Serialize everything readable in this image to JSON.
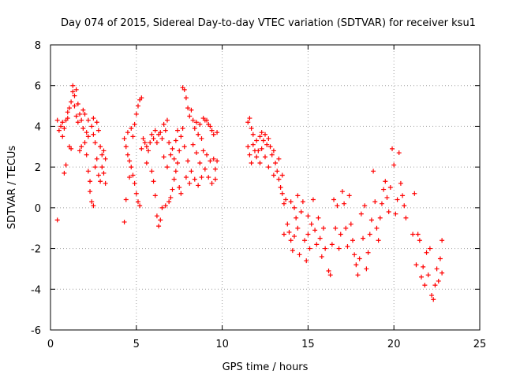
{
  "chart_data": {
    "type": "scatter",
    "title": "Day 074 of 2015, Sidereal Day-to-day VTEC variation (SDTVAR) for receiver ksu1",
    "xlabel": "GPS time / hours",
    "ylabel": "SDTVAR / TECUs",
    "xlim": [
      0,
      25
    ],
    "ylim": [
      -6,
      8
    ],
    "xticks": [
      0,
      5,
      10,
      15,
      20,
      25
    ],
    "yticks": [
      -6,
      -4,
      -2,
      0,
      2,
      4,
      6,
      8
    ],
    "grid": true,
    "marker": "+",
    "color": "#ff0000",
    "series": [
      {
        "name": "ksu1",
        "points": [
          [
            0.4,
            -0.6
          ],
          [
            0.4,
            4.3
          ],
          [
            0.5,
            3.8
          ],
          [
            0.6,
            4.0
          ],
          [
            0.7,
            4.2
          ],
          [
            0.7,
            3.5
          ],
          [
            0.8,
            3.9
          ],
          [
            0.8,
            1.7
          ],
          [
            0.9,
            2.1
          ],
          [
            0.9,
            4.3
          ],
          [
            1.0,
            4.4
          ],
          [
            1.0,
            4.7
          ],
          [
            1.1,
            4.9
          ],
          [
            1.1,
            3.0
          ],
          [
            1.2,
            5.2
          ],
          [
            1.2,
            2.9
          ],
          [
            1.3,
            5.7
          ],
          [
            1.3,
            6.0
          ],
          [
            1.4,
            5.5
          ],
          [
            1.4,
            5.0
          ],
          [
            1.5,
            5.8
          ],
          [
            1.5,
            4.5
          ],
          [
            1.6,
            5.1
          ],
          [
            1.6,
            4.2
          ],
          [
            1.7,
            4.6
          ],
          [
            1.7,
            2.8
          ],
          [
            1.8,
            4.3
          ],
          [
            1.8,
            3.0
          ],
          [
            1.9,
            3.9
          ],
          [
            1.9,
            4.8
          ],
          [
            2.0,
            4.6
          ],
          [
            2.0,
            3.2
          ],
          [
            2.1,
            2.6
          ],
          [
            2.1,
            3.7
          ],
          [
            2.2,
            1.8
          ],
          [
            2.2,
            3.5
          ],
          [
            2.2,
            4.3
          ],
          [
            2.3,
            1.3
          ],
          [
            2.3,
            0.8
          ],
          [
            2.4,
            0.3
          ],
          [
            2.4,
            4.0
          ],
          [
            2.5,
            0.1
          ],
          [
            2.5,
            3.6
          ],
          [
            2.5,
            4.4
          ],
          [
            2.6,
            3.2
          ],
          [
            2.6,
            2.0
          ],
          [
            2.7,
            2.4
          ],
          [
            2.7,
            4.2
          ],
          [
            2.8,
            3.8
          ],
          [
            2.8,
            1.6
          ],
          [
            2.9,
            3.0
          ],
          [
            2.9,
            1.3
          ],
          [
            3.0,
            2.6
          ],
          [
            3.0,
            2.0
          ],
          [
            3.1,
            1.7
          ],
          [
            3.1,
            2.8
          ],
          [
            3.2,
            1.2
          ],
          [
            3.2,
            2.4
          ],
          [
            4.3,
            -0.7
          ],
          [
            4.3,
            3.4
          ],
          [
            4.4,
            3.0
          ],
          [
            4.4,
            0.4
          ],
          [
            4.5,
            2.6
          ],
          [
            4.5,
            3.7
          ],
          [
            4.6,
            2.3
          ],
          [
            4.6,
            1.5
          ],
          [
            4.7,
            3.9
          ],
          [
            4.7,
            2.0
          ],
          [
            4.8,
            3.5
          ],
          [
            4.8,
            1.6
          ],
          [
            4.9,
            4.1
          ],
          [
            4.9,
            1.2
          ],
          [
            5.0,
            4.6
          ],
          [
            5.0,
            0.7
          ],
          [
            5.1,
            5.0
          ],
          [
            5.1,
            0.3
          ],
          [
            5.2,
            5.3
          ],
          [
            5.2,
            0.1
          ],
          [
            5.3,
            5.4
          ],
          [
            5.3,
            2.9
          ],
          [
            5.4,
            3.4
          ],
          [
            5.5,
            3.2
          ],
          [
            5.6,
            3.0
          ],
          [
            5.6,
            2.2
          ],
          [
            5.7,
            2.8
          ],
          [
            5.8,
            3.2
          ],
          [
            5.9,
            3.6
          ],
          [
            5.9,
            1.8
          ],
          [
            6.0,
            3.4
          ],
          [
            6.0,
            1.3
          ],
          [
            6.1,
            3.8
          ],
          [
            6.1,
            0.6
          ],
          [
            6.2,
            3.2
          ],
          [
            6.2,
            -0.4
          ],
          [
            6.3,
            3.6
          ],
          [
            6.3,
            -0.9
          ],
          [
            6.4,
            3.7
          ],
          [
            6.4,
            -0.6
          ],
          [
            6.5,
            3.4
          ],
          [
            6.5,
            0.0
          ],
          [
            6.6,
            4.1
          ],
          [
            6.6,
            2.5
          ],
          [
            6.7,
            3.8
          ],
          [
            6.7,
            0.1
          ],
          [
            6.8,
            4.3
          ],
          [
            6.8,
            2.0
          ],
          [
            6.9,
            3.2
          ],
          [
            6.9,
            0.3
          ],
          [
            7.0,
            2.6
          ],
          [
            7.0,
            0.5
          ],
          [
            7.1,
            2.9
          ],
          [
            7.1,
            0.9
          ],
          [
            7.2,
            2.4
          ],
          [
            7.2,
            1.4
          ],
          [
            7.3,
            3.3
          ],
          [
            7.3,
            1.8
          ],
          [
            7.4,
            3.8
          ],
          [
            7.4,
            2.2
          ],
          [
            7.5,
            2.8
          ],
          [
            7.5,
            1.0
          ],
          [
            7.6,
            3.5
          ],
          [
            7.6,
            0.7
          ],
          [
            7.7,
            3.9
          ],
          [
            7.7,
            5.9
          ],
          [
            7.8,
            5.8
          ],
          [
            7.8,
            3.0
          ],
          [
            7.9,
            5.4
          ],
          [
            7.9,
            1.5
          ],
          [
            8.0,
            4.9
          ],
          [
            8.0,
            2.3
          ],
          [
            8.1,
            4.5
          ],
          [
            8.1,
            1.2
          ],
          [
            8.2,
            4.8
          ],
          [
            8.2,
            1.8
          ],
          [
            8.3,
            4.3
          ],
          [
            8.3,
            3.1
          ],
          [
            8.4,
            3.9
          ],
          [
            8.4,
            1.4
          ],
          [
            8.5,
            4.2
          ],
          [
            8.5,
            2.7
          ],
          [
            8.6,
            3.6
          ],
          [
            8.6,
            1.1
          ],
          [
            8.7,
            4.1
          ],
          [
            8.7,
            2.2
          ],
          [
            8.8,
            3.4
          ],
          [
            8.8,
            1.5
          ],
          [
            8.9,
            4.4
          ],
          [
            8.9,
            2.8
          ],
          [
            9.0,
            4.3
          ],
          [
            9.0,
            1.9
          ],
          [
            9.1,
            4.3
          ],
          [
            9.1,
            2.6
          ],
          [
            9.2,
            4.1
          ],
          [
            9.2,
            1.5
          ],
          [
            9.3,
            4.0
          ],
          [
            9.3,
            2.3
          ],
          [
            9.4,
            3.8
          ],
          [
            9.4,
            1.2
          ],
          [
            9.5,
            3.6
          ],
          [
            9.5,
            2.4
          ],
          [
            9.6,
            1.9
          ],
          [
            9.6,
            1.4
          ],
          [
            9.7,
            3.7
          ],
          [
            9.7,
            2.3
          ],
          [
            11.5,
            4.2
          ],
          [
            11.5,
            3.0
          ],
          [
            11.6,
            4.4
          ],
          [
            11.6,
            2.6
          ],
          [
            11.7,
            3.9
          ],
          [
            11.7,
            2.2
          ],
          [
            11.8,
            3.6
          ],
          [
            11.8,
            3.1
          ],
          [
            11.9,
            2.8
          ],
          [
            12.0,
            3.3
          ],
          [
            12.0,
            2.5
          ],
          [
            12.1,
            2.8
          ],
          [
            12.2,
            3.5
          ],
          [
            12.2,
            2.2
          ],
          [
            12.3,
            3.7
          ],
          [
            12.3,
            2.9
          ],
          [
            12.4,
            3.3
          ],
          [
            12.5,
            3.6
          ],
          [
            12.5,
            2.5
          ],
          [
            12.6,
            3.1
          ],
          [
            12.7,
            3.4
          ],
          [
            12.7,
            2.0
          ],
          [
            12.8,
            3.0
          ],
          [
            12.9,
            2.6
          ],
          [
            13.0,
            2.8
          ],
          [
            13.0,
            1.6
          ],
          [
            13.1,
            2.2
          ],
          [
            13.2,
            1.8
          ],
          [
            13.3,
            1.4
          ],
          [
            13.3,
            2.4
          ],
          [
            13.4,
            1.0
          ],
          [
            13.5,
            0.7
          ],
          [
            13.5,
            1.6
          ],
          [
            13.6,
            0.2
          ],
          [
            13.6,
            -1.3
          ],
          [
            13.7,
            0.4
          ],
          [
            13.8,
            -0.8
          ],
          [
            13.9,
            -1.2
          ],
          [
            14.0,
            -1.6
          ],
          [
            14.0,
            0.3
          ],
          [
            14.1,
            -2.1
          ],
          [
            14.2,
            -1.4
          ],
          [
            14.2,
            0.0
          ],
          [
            14.3,
            -0.5
          ],
          [
            14.4,
            0.6
          ],
          [
            14.4,
            -1.0
          ],
          [
            14.5,
            -2.3
          ],
          [
            14.6,
            -0.2
          ],
          [
            14.7,
            0.3
          ],
          [
            14.8,
            -1.6
          ],
          [
            14.9,
            -2.6
          ],
          [
            15.0,
            -0.4
          ],
          [
            15.0,
            -1.3
          ],
          [
            15.1,
            -2.0
          ],
          [
            15.2,
            -0.8
          ],
          [
            15.3,
            0.4
          ],
          [
            15.4,
            -1.1
          ],
          [
            15.5,
            -1.8
          ],
          [
            15.6,
            -0.5
          ],
          [
            15.7,
            -1.5
          ],
          [
            15.8,
            -2.4
          ],
          [
            15.9,
            -1.0
          ],
          [
            16.0,
            -2.0
          ],
          [
            16.2,
            -3.1
          ],
          [
            16.3,
            -3.3
          ],
          [
            16.4,
            -1.8
          ],
          [
            16.5,
            0.4
          ],
          [
            16.6,
            -1.0
          ],
          [
            16.7,
            0.1
          ],
          [
            16.8,
            -2.0
          ],
          [
            16.9,
            -1.3
          ],
          [
            17.0,
            0.8
          ],
          [
            17.1,
            0.2
          ],
          [
            17.2,
            -1.0
          ],
          [
            17.3,
            -1.9
          ],
          [
            17.4,
            0.6
          ],
          [
            17.5,
            -0.8
          ],
          [
            17.6,
            -1.6
          ],
          [
            17.7,
            -2.3
          ],
          [
            17.8,
            -2.8
          ],
          [
            17.9,
            -3.3
          ],
          [
            18.0,
            -2.5
          ],
          [
            18.1,
            -0.3
          ],
          [
            18.2,
            -1.5
          ],
          [
            18.3,
            0.1
          ],
          [
            18.4,
            -3.0
          ],
          [
            18.5,
            -2.2
          ],
          [
            18.6,
            -1.3
          ],
          [
            18.7,
            -0.6
          ],
          [
            18.8,
            1.8
          ],
          [
            18.9,
            0.3
          ],
          [
            19.0,
            -1.0
          ],
          [
            19.1,
            -1.6
          ],
          [
            19.2,
            -0.5
          ],
          [
            19.3,
            0.2
          ],
          [
            19.4,
            0.9
          ],
          [
            19.5,
            1.3
          ],
          [
            19.6,
            0.5
          ],
          [
            19.7,
            -0.2
          ],
          [
            19.8,
            1.0
          ],
          [
            19.9,
            2.9
          ],
          [
            20.0,
            2.1
          ],
          [
            20.1,
            -0.3
          ],
          [
            20.2,
            0.4
          ],
          [
            20.3,
            2.7
          ],
          [
            20.4,
            1.2
          ],
          [
            20.5,
            0.6
          ],
          [
            20.6,
            0.1
          ],
          [
            20.7,
            -0.5
          ],
          [
            21.1,
            -1.3
          ],
          [
            21.2,
            0.7
          ],
          [
            21.3,
            -2.8
          ],
          [
            21.4,
            -1.3
          ],
          [
            21.5,
            -1.6
          ],
          [
            21.6,
            -3.4
          ],
          [
            21.7,
            -2.9
          ],
          [
            21.8,
            -3.8
          ],
          [
            21.9,
            -2.2
          ],
          [
            22.0,
            -3.3
          ],
          [
            22.1,
            -2.0
          ],
          [
            22.2,
            -4.3
          ],
          [
            22.3,
            -4.5
          ],
          [
            22.4,
            -3.8
          ],
          [
            22.5,
            -3.0
          ],
          [
            22.6,
            -3.6
          ],
          [
            22.7,
            -2.5
          ],
          [
            22.8,
            -1.6
          ],
          [
            22.8,
            -3.2
          ]
        ]
      }
    ]
  }
}
